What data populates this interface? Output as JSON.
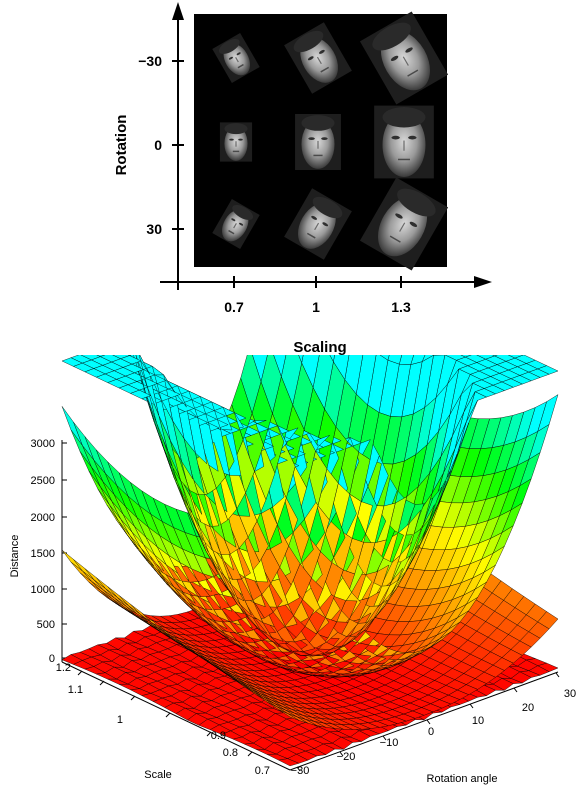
{
  "top_panel": {
    "x_axis_label": "Scaling",
    "y_axis_label": "Rotation",
    "x_ticks": [
      "0.7",
      "1",
      "1.3"
    ],
    "y_ticks": [
      "−30",
      "0",
      "30"
    ],
    "grid": {
      "columns_scaling": [
        0.7,
        1,
        1.3
      ],
      "rows_rotation": [
        -30,
        0,
        30
      ],
      "cell_content": "face-image"
    }
  },
  "bottom_panel": {
    "type": "surface-3d",
    "z_axis_label": "Distance",
    "x_axis_label": "Rotation angle",
    "y_axis_label": "Scale",
    "z_ticks": [
      "0",
      "500",
      "1000",
      "1500",
      "2000",
      "2500",
      "3000"
    ],
    "rotation_ticks": [
      "−30",
      "−20",
      "−10",
      "0",
      "10",
      "20",
      "30"
    ],
    "scale_ticks": [
      "0.7",
      "0.8",
      "0.9",
      "1",
      "1.1",
      "1.2"
    ],
    "colormap": [
      "#ff0000",
      "#ff8000",
      "#ffff00",
      "#00ff00",
      "#00ffff"
    ]
  }
}
